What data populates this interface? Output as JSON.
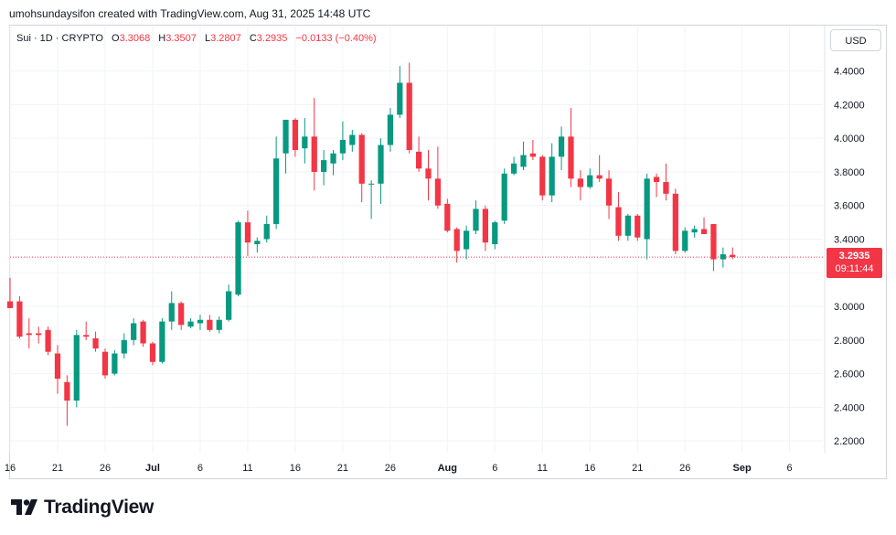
{
  "header": {
    "credit": "umohsundaysifon created with TradingView.com, Aug 31, 2025 14:48 UTC"
  },
  "legend": {
    "symbol": "Sui · 1D · CRYPTO",
    "open_label": "O",
    "open": "3.3068",
    "high_label": "H",
    "high": "3.3507",
    "low_label": "L",
    "low": "3.2807",
    "close_label": "C",
    "close": "3.2935",
    "change": "−0.0133 (−0.40%)"
  },
  "currency_button": "USD",
  "last_price": {
    "value": "3.2935",
    "countdown": "09:11:44"
  },
  "brand": {
    "name": "TradingView"
  },
  "colors": {
    "up": "#089981",
    "down": "#f23645",
    "grid": "#f0f3fa",
    "axis_text": "#131722"
  },
  "chart_data": {
    "type": "candlestick",
    "y_axis_side": "right",
    "ylim": [
      2.13,
      4.67
    ],
    "y_ticks": [
      2.2,
      2.4,
      2.6,
      2.8,
      3.0,
      3.2,
      3.4,
      3.6,
      3.8,
      4.0,
      4.2,
      4.4
    ],
    "y_tick_labels": [
      "2.2000",
      "2.4000",
      "2.6000",
      "2.8000",
      "3.0000",
      "3.2000",
      "3.4000",
      "3.6000",
      "3.8000",
      "4.0000",
      "4.2000",
      "4.4000"
    ],
    "x_ticks": [
      {
        "label": "16",
        "date": "2025-06-16",
        "bold": false
      },
      {
        "label": "21",
        "date": "2025-06-21",
        "bold": false
      },
      {
        "label": "26",
        "date": "2025-06-26",
        "bold": false
      },
      {
        "label": "Jul",
        "date": "2025-07-01",
        "bold": true
      },
      {
        "label": "6",
        "date": "2025-07-06",
        "bold": false
      },
      {
        "label": "11",
        "date": "2025-07-11",
        "bold": false
      },
      {
        "label": "16",
        "date": "2025-07-16",
        "bold": false
      },
      {
        "label": "21",
        "date": "2025-07-21",
        "bold": false
      },
      {
        "label": "26",
        "date": "2025-07-26",
        "bold": false
      },
      {
        "label": "Aug",
        "date": "2025-08-01",
        "bold": true
      },
      {
        "label": "6",
        "date": "2025-08-06",
        "bold": false
      },
      {
        "label": "11",
        "date": "2025-08-11",
        "bold": false
      },
      {
        "label": "16",
        "date": "2025-08-16",
        "bold": false
      },
      {
        "label": "21",
        "date": "2025-08-21",
        "bold": false
      },
      {
        "label": "26",
        "date": "2025-08-26",
        "bold": false
      },
      {
        "label": "Sep",
        "date": "2025-09-01",
        "bold": true
      },
      {
        "label": "6",
        "date": "2025-09-06",
        "bold": false
      }
    ],
    "x_start": "2025-06-16",
    "x_end": "2025-09-09",
    "last_price_line": 3.2935,
    "candles": [
      {
        "date": "2025-06-16",
        "o": 3.03,
        "h": 3.17,
        "l": 2.99,
        "c": 2.99
      },
      {
        "date": "2025-06-17",
        "o": 3.03,
        "h": 3.06,
        "l": 2.81,
        "c": 2.82
      },
      {
        "date": "2025-06-18",
        "o": 2.84,
        "h": 2.93,
        "l": 2.75,
        "c": 2.83
      },
      {
        "date": "2025-06-19",
        "o": 2.84,
        "h": 2.88,
        "l": 2.78,
        "c": 2.83
      },
      {
        "date": "2025-06-20",
        "o": 2.86,
        "h": 2.88,
        "l": 2.71,
        "c": 2.73
      },
      {
        "date": "2025-06-21",
        "o": 2.72,
        "h": 2.77,
        "l": 2.48,
        "c": 2.57
      },
      {
        "date": "2025-06-22",
        "o": 2.55,
        "h": 2.59,
        "l": 2.29,
        "c": 2.44
      },
      {
        "date": "2025-06-23",
        "o": 2.44,
        "h": 2.86,
        "l": 2.4,
        "c": 2.83
      },
      {
        "date": "2025-06-24",
        "o": 2.83,
        "h": 2.91,
        "l": 2.8,
        "c": 2.82
      },
      {
        "date": "2025-06-25",
        "o": 2.81,
        "h": 2.85,
        "l": 2.73,
        "c": 2.75
      },
      {
        "date": "2025-06-26",
        "o": 2.73,
        "h": 2.75,
        "l": 2.57,
        "c": 2.59
      },
      {
        "date": "2025-06-27",
        "o": 2.6,
        "h": 2.74,
        "l": 2.59,
        "c": 2.72
      },
      {
        "date": "2025-06-28",
        "o": 2.72,
        "h": 2.84,
        "l": 2.69,
        "c": 2.8
      },
      {
        "date": "2025-06-29",
        "o": 2.8,
        "h": 2.93,
        "l": 2.77,
        "c": 2.9
      },
      {
        "date": "2025-06-30",
        "o": 2.91,
        "h": 2.92,
        "l": 2.76,
        "c": 2.78
      },
      {
        "date": "2025-07-01",
        "o": 2.78,
        "h": 2.79,
        "l": 2.65,
        "c": 2.67
      },
      {
        "date": "2025-07-02",
        "o": 2.67,
        "h": 2.93,
        "l": 2.66,
        "c": 2.91
      },
      {
        "date": "2025-07-03",
        "o": 2.91,
        "h": 3.09,
        "l": 2.86,
        "c": 3.02
      },
      {
        "date": "2025-07-04",
        "o": 3.02,
        "h": 3.03,
        "l": 2.86,
        "c": 2.89
      },
      {
        "date": "2025-07-05",
        "o": 2.88,
        "h": 2.93,
        "l": 2.87,
        "c": 2.91
      },
      {
        "date": "2025-07-06",
        "o": 2.9,
        "h": 2.95,
        "l": 2.86,
        "c": 2.92
      },
      {
        "date": "2025-07-07",
        "o": 2.92,
        "h": 2.95,
        "l": 2.85,
        "c": 2.86
      },
      {
        "date": "2025-07-08",
        "o": 2.86,
        "h": 2.94,
        "l": 2.84,
        "c": 2.92
      },
      {
        "date": "2025-07-09",
        "o": 2.92,
        "h": 3.13,
        "l": 2.91,
        "c": 3.09
      },
      {
        "date": "2025-07-10",
        "o": 3.07,
        "h": 3.51,
        "l": 3.06,
        "c": 3.5
      },
      {
        "date": "2025-07-11",
        "o": 3.5,
        "h": 3.57,
        "l": 3.3,
        "c": 3.38
      },
      {
        "date": "2025-07-12",
        "o": 3.37,
        "h": 3.41,
        "l": 3.32,
        "c": 3.39
      },
      {
        "date": "2025-07-13",
        "o": 3.4,
        "h": 3.54,
        "l": 3.38,
        "c": 3.49
      },
      {
        "date": "2025-07-14",
        "o": 3.49,
        "h": 4.01,
        "l": 3.46,
        "c": 3.88
      },
      {
        "date": "2025-07-15",
        "o": 3.91,
        "h": 4.11,
        "l": 3.79,
        "c": 4.11
      },
      {
        "date": "2025-07-16",
        "o": 4.11,
        "h": 4.12,
        "l": 3.89,
        "c": 3.93
      },
      {
        "date": "2025-07-17",
        "o": 3.94,
        "h": 4.12,
        "l": 3.85,
        "c": 4.01
      },
      {
        "date": "2025-07-18",
        "o": 4.01,
        "h": 4.24,
        "l": 3.69,
        "c": 3.8
      },
      {
        "date": "2025-07-19",
        "o": 3.8,
        "h": 3.93,
        "l": 3.72,
        "c": 3.87
      },
      {
        "date": "2025-07-20",
        "o": 3.85,
        "h": 3.93,
        "l": 3.78,
        "c": 3.91
      },
      {
        "date": "2025-07-21",
        "o": 3.91,
        "h": 4.1,
        "l": 3.87,
        "c": 3.99
      },
      {
        "date": "2025-07-22",
        "o": 3.96,
        "h": 4.05,
        "l": 3.92,
        "c": 4.02
      },
      {
        "date": "2025-07-23",
        "o": 4.02,
        "h": 4.03,
        "l": 3.62,
        "c": 3.73
      },
      {
        "date": "2025-07-24",
        "o": 3.73,
        "h": 3.75,
        "l": 3.52,
        "c": 3.73
      },
      {
        "date": "2025-07-25",
        "o": 3.73,
        "h": 4.0,
        "l": 3.61,
        "c": 3.96
      },
      {
        "date": "2025-07-26",
        "o": 3.96,
        "h": 4.18,
        "l": 3.92,
        "c": 4.14
      },
      {
        "date": "2025-07-27",
        "o": 4.14,
        "h": 4.43,
        "l": 4.12,
        "c": 4.33
      },
      {
        "date": "2025-07-28",
        "o": 4.33,
        "h": 4.45,
        "l": 3.91,
        "c": 3.93
      },
      {
        "date": "2025-07-29",
        "o": 3.92,
        "h": 4.01,
        "l": 3.8,
        "c": 3.82
      },
      {
        "date": "2025-07-30",
        "o": 3.82,
        "h": 3.93,
        "l": 3.63,
        "c": 3.76
      },
      {
        "date": "2025-07-31",
        "o": 3.76,
        "h": 3.95,
        "l": 3.58,
        "c": 3.6
      },
      {
        "date": "2025-08-01",
        "o": 3.61,
        "h": 3.64,
        "l": 3.44,
        "c": 3.45
      },
      {
        "date": "2025-08-02",
        "o": 3.46,
        "h": 3.47,
        "l": 3.26,
        "c": 3.33
      },
      {
        "date": "2025-08-03",
        "o": 3.34,
        "h": 3.48,
        "l": 3.28,
        "c": 3.45
      },
      {
        "date": "2025-08-04",
        "o": 3.45,
        "h": 3.63,
        "l": 3.43,
        "c": 3.58
      },
      {
        "date": "2025-08-05",
        "o": 3.58,
        "h": 3.6,
        "l": 3.33,
        "c": 3.38
      },
      {
        "date": "2025-08-06",
        "o": 3.37,
        "h": 3.51,
        "l": 3.34,
        "c": 3.5
      },
      {
        "date": "2025-08-07",
        "o": 3.51,
        "h": 3.82,
        "l": 3.49,
        "c": 3.79
      },
      {
        "date": "2025-08-08",
        "o": 3.79,
        "h": 3.89,
        "l": 3.78,
        "c": 3.85
      },
      {
        "date": "2025-08-09",
        "o": 3.83,
        "h": 3.98,
        "l": 3.81,
        "c": 3.9
      },
      {
        "date": "2025-08-10",
        "o": 3.91,
        "h": 3.99,
        "l": 3.87,
        "c": 3.89
      },
      {
        "date": "2025-08-11",
        "o": 3.89,
        "h": 3.9,
        "l": 3.63,
        "c": 3.66
      },
      {
        "date": "2025-08-12",
        "o": 3.66,
        "h": 3.97,
        "l": 3.62,
        "c": 3.89
      },
      {
        "date": "2025-08-13",
        "o": 3.89,
        "h": 4.07,
        "l": 3.81,
        "c": 4.01
      },
      {
        "date": "2025-08-14",
        "o": 4.01,
        "h": 4.18,
        "l": 3.71,
        "c": 3.76
      },
      {
        "date": "2025-08-15",
        "o": 3.76,
        "h": 3.81,
        "l": 3.63,
        "c": 3.71
      },
      {
        "date": "2025-08-16",
        "o": 3.71,
        "h": 3.82,
        "l": 3.7,
        "c": 3.78
      },
      {
        "date": "2025-08-17",
        "o": 3.78,
        "h": 3.9,
        "l": 3.74,
        "c": 3.76
      },
      {
        "date": "2025-08-18",
        "o": 3.76,
        "h": 3.81,
        "l": 3.52,
        "c": 3.6
      },
      {
        "date": "2025-08-19",
        "o": 3.59,
        "h": 3.68,
        "l": 3.39,
        "c": 3.42
      },
      {
        "date": "2025-08-20",
        "o": 3.42,
        "h": 3.55,
        "l": 3.39,
        "c": 3.54
      },
      {
        "date": "2025-08-21",
        "o": 3.54,
        "h": 3.55,
        "l": 3.39,
        "c": 3.41
      },
      {
        "date": "2025-08-22",
        "o": 3.4,
        "h": 3.79,
        "l": 3.28,
        "c": 3.76
      },
      {
        "date": "2025-08-23",
        "o": 3.77,
        "h": 3.79,
        "l": 3.65,
        "c": 3.74
      },
      {
        "date": "2025-08-24",
        "o": 3.74,
        "h": 3.85,
        "l": 3.63,
        "c": 3.67
      },
      {
        "date": "2025-08-25",
        "o": 3.67,
        "h": 3.7,
        "l": 3.31,
        "c": 3.33
      },
      {
        "date": "2025-08-26",
        "o": 3.33,
        "h": 3.47,
        "l": 3.32,
        "c": 3.45
      },
      {
        "date": "2025-08-27",
        "o": 3.44,
        "h": 3.48,
        "l": 3.41,
        "c": 3.46
      },
      {
        "date": "2025-08-28",
        "o": 3.46,
        "h": 3.53,
        "l": 3.43,
        "c": 3.43
      },
      {
        "date": "2025-08-29",
        "o": 3.49,
        "h": 3.49,
        "l": 3.21,
        "c": 3.28
      },
      {
        "date": "2025-08-30",
        "o": 3.28,
        "h": 3.35,
        "l": 3.23,
        "c": 3.31
      },
      {
        "date": "2025-08-31",
        "o": 3.3068,
        "h": 3.3507,
        "l": 3.2807,
        "c": 3.2935
      }
    ]
  }
}
